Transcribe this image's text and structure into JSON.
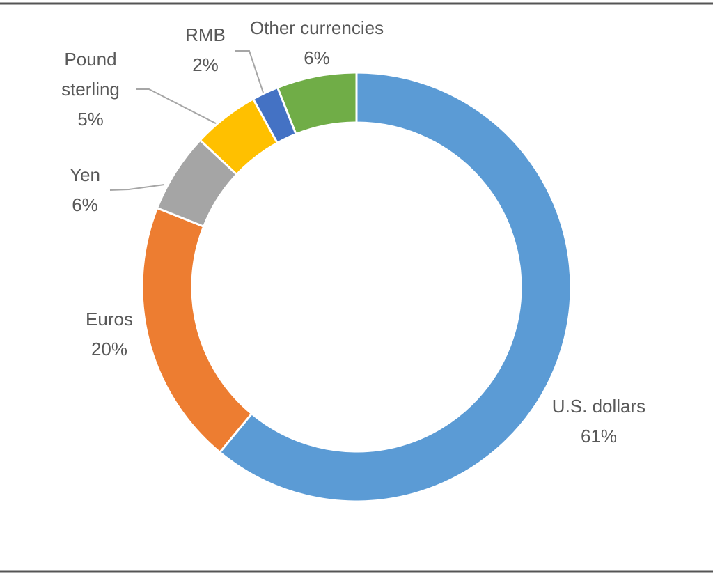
{
  "chart_data": {
    "type": "donut",
    "categories": [
      "U.S. dollars",
      "Euros",
      "Yen",
      "Pound sterling",
      "RMB",
      "Other currencies"
    ],
    "values": [
      61,
      20,
      6,
      5,
      2,
      6
    ],
    "value_labels": [
      "61%",
      "20%",
      "6%",
      "5%",
      "2%",
      "6%"
    ],
    "colors": [
      "#5b9bd5",
      "#ed7d31",
      "#a5a5a5",
      "#ffc000",
      "#4472c4",
      "#70ad47"
    ]
  }
}
